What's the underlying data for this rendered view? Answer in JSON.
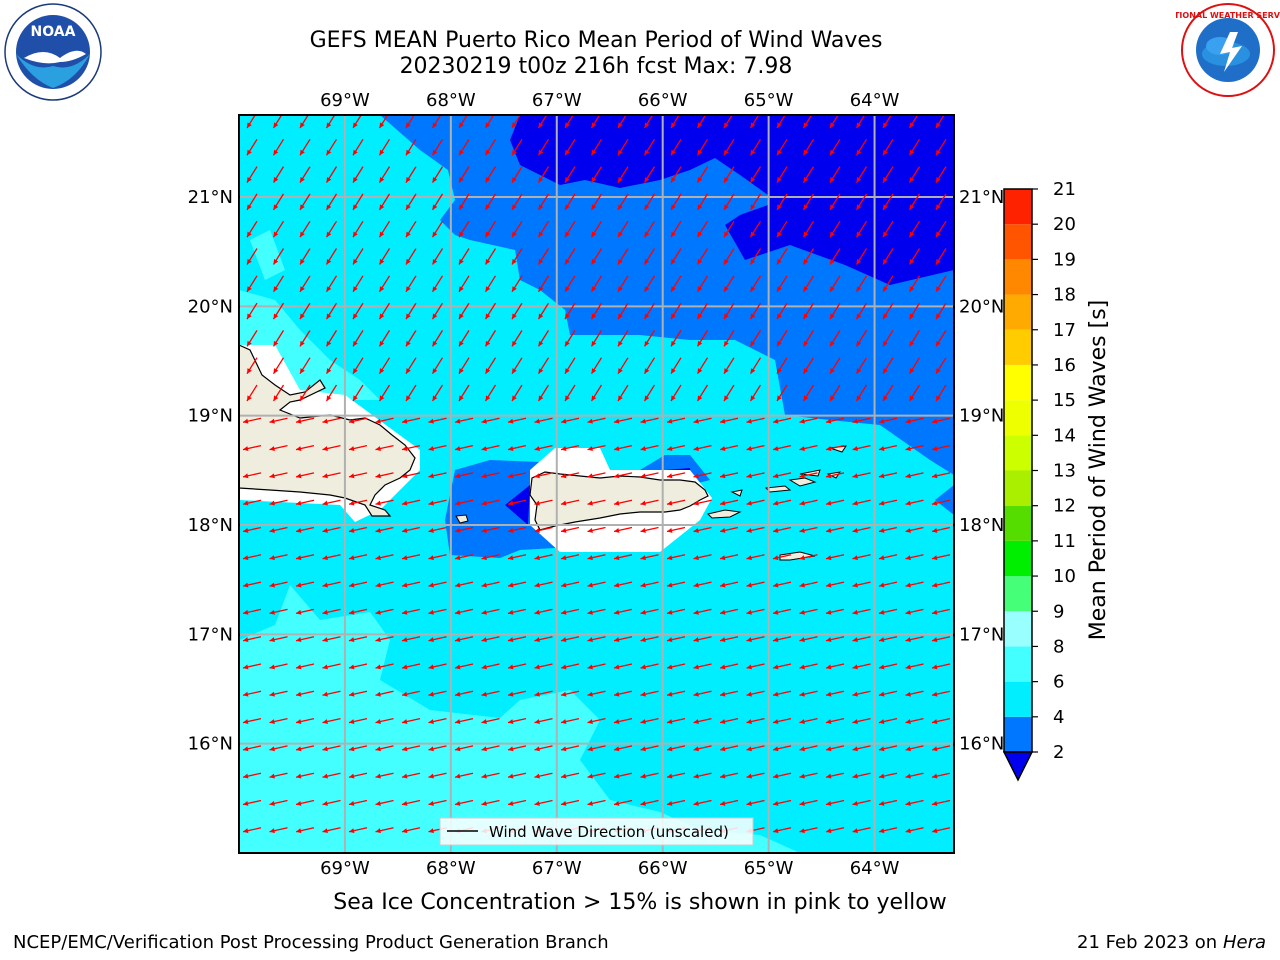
{
  "header": {
    "title_line1": "GEFS MEAN Puerto Rico Mean Period of Wind Waves",
    "title_line2": "20230219 t00z 216h fcst   Max: 7.98"
  },
  "map": {
    "lon_labels": [
      "69°W",
      "68°W",
      "67°W",
      "66°W",
      "65°W",
      "64°W"
    ],
    "lat_labels": [
      "21°N",
      "20°N",
      "19°N",
      "18°N",
      "17°N",
      "16°N"
    ],
    "lon_values": [
      -69,
      -68,
      -67,
      -66,
      -65,
      -64
    ],
    "lat_values": [
      21,
      20,
      19,
      18,
      17,
      16
    ],
    "lon_range": [
      -70,
      -63.25
    ],
    "lat_range": [
      15.0,
      21.75
    ],
    "legend_label": "Wind Wave Direction (unscaled)",
    "arrow_color": "#ff0000",
    "land_color": "#efedde",
    "wind_wave_direction": "from east-northeast (arrows point west-southwest)"
  },
  "colorbar": {
    "label": "Mean Period of Wind Waves [s]",
    "ticks": [
      "2",
      "4",
      "6",
      "8",
      "9",
      "10",
      "11",
      "12",
      "13",
      "14",
      "15",
      "16",
      "17",
      "18",
      "19",
      "20",
      "21"
    ],
    "levels": [
      {
        "from": 2,
        "to": 4,
        "color": "#0077ff"
      },
      {
        "from": 4,
        "to": 6,
        "color": "#00eeff"
      },
      {
        "from": 6,
        "to": 8,
        "color": "#44ffff"
      },
      {
        "from": 8,
        "to": 9,
        "color": "#99ffff"
      },
      {
        "from": 9,
        "to": 10,
        "color": "#44ff77"
      },
      {
        "from": 10,
        "to": 11,
        "color": "#00ee00"
      },
      {
        "from": 11,
        "to": 12,
        "color": "#55dd00"
      },
      {
        "from": 12,
        "to": 13,
        "color": "#aaee00"
      },
      {
        "from": 13,
        "to": 14,
        "color": "#ccff00"
      },
      {
        "from": 14,
        "to": 15,
        "color": "#eeff00"
      },
      {
        "from": 15,
        "to": 16,
        "color": "#ffff00"
      },
      {
        "from": 16,
        "to": 17,
        "color": "#ffcc00"
      },
      {
        "from": 17,
        "to": 18,
        "color": "#ffaa00"
      },
      {
        "from": 18,
        "to": 19,
        "color": "#ff8800"
      },
      {
        "from": 19,
        "to": 20,
        "color": "#ff5500"
      },
      {
        "from": 20,
        "to": 21,
        "color": "#ff2200"
      }
    ],
    "under_color": "#0000ee"
  },
  "footer": {
    "sea_ice_note": "Sea Ice Concentration > 15% is shown in pink to yellow",
    "branch": "NCEP/EMC/Verification Post Processing Product Generation Branch",
    "date": "21 Feb 2023 on",
    "machine": "Hera"
  },
  "logos": {
    "noaa_text": "NOAA",
    "nws_text": "NATIONAL WEATHER SERVICE"
  }
}
